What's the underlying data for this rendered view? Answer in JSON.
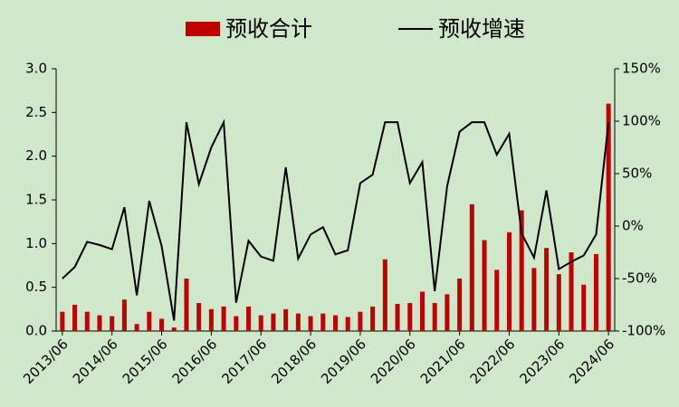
{
  "chart_data": {
    "type": "bar-line",
    "series": [
      {
        "name": "预收合计",
        "type": "bar",
        "color": "#c00000",
        "axis": "y",
        "values": [
          0.22,
          0.3,
          0.22,
          0.18,
          0.17,
          0.36,
          0.08,
          0.22,
          0.14,
          0.04,
          0.6,
          0.32,
          0.25,
          0.28,
          0.17,
          0.28,
          0.18,
          0.2,
          0.25,
          0.2,
          0.17,
          0.2,
          0.18,
          0.16,
          0.22,
          0.28,
          0.82,
          0.31,
          0.32,
          0.45,
          0.32,
          0.42,
          0.6,
          1.45,
          1.04,
          0.7,
          1.13,
          1.38,
          0.72,
          0.95,
          0.65,
          0.9,
          0.53,
          0.88,
          2.6
        ]
      },
      {
        "name": "预收增速",
        "type": "line",
        "color": "#000000",
        "axis": "y2",
        "values": [
          -50,
          -39,
          -15,
          -18,
          -22,
          18,
          -66,
          24,
          -19,
          -90,
          99,
          40,
          75,
          99,
          -73,
          -14,
          -29,
          -33,
          56,
          -31,
          -8,
          -1,
          -27,
          -23,
          41,
          49,
          99,
          99,
          41,
          61,
          -62,
          38,
          90,
          99,
          99,
          68,
          88,
          -7,
          -30,
          34,
          -41,
          -34,
          -28,
          -8,
          99
        ]
      }
    ],
    "categories": [
      "2013/06",
      null,
      null,
      null,
      "2014/06",
      null,
      null,
      null,
      "2015/06",
      null,
      null,
      null,
      "2016/06",
      null,
      null,
      null,
      "2017/06",
      null,
      null,
      null,
      "2018/06",
      null,
      null,
      null,
      "2019/06",
      null,
      null,
      null,
      "2020/06",
      null,
      null,
      null,
      "2021/06",
      null,
      null,
      null,
      "2022/06",
      null,
      null,
      null,
      "2023/06",
      null,
      null,
      null,
      "2024/06"
    ],
    "ylim": [
      0,
      3
    ],
    "yticks": [
      {
        "value": 0,
        "label": "0.0"
      },
      0.5,
      {
        "value": 1,
        "label": "1.0"
      },
      1.5,
      {
        "value": 2,
        "label": "2.0"
      },
      2.5,
      {
        "value": 3,
        "label": "3.0"
      }
    ],
    "y2lim": [
      -100,
      150
    ],
    "y2ticks": [
      {
        "value": -100,
        "label": "-100%"
      },
      {
        "value": -50,
        "label": "-50%"
      },
      {
        "value": 0,
        "label": "0%"
      },
      {
        "value": 50,
        "label": "50%"
      },
      {
        "value": 100,
        "label": "100%"
      },
      {
        "value": 150,
        "label": "150%"
      }
    ],
    "legend": "top"
  }
}
